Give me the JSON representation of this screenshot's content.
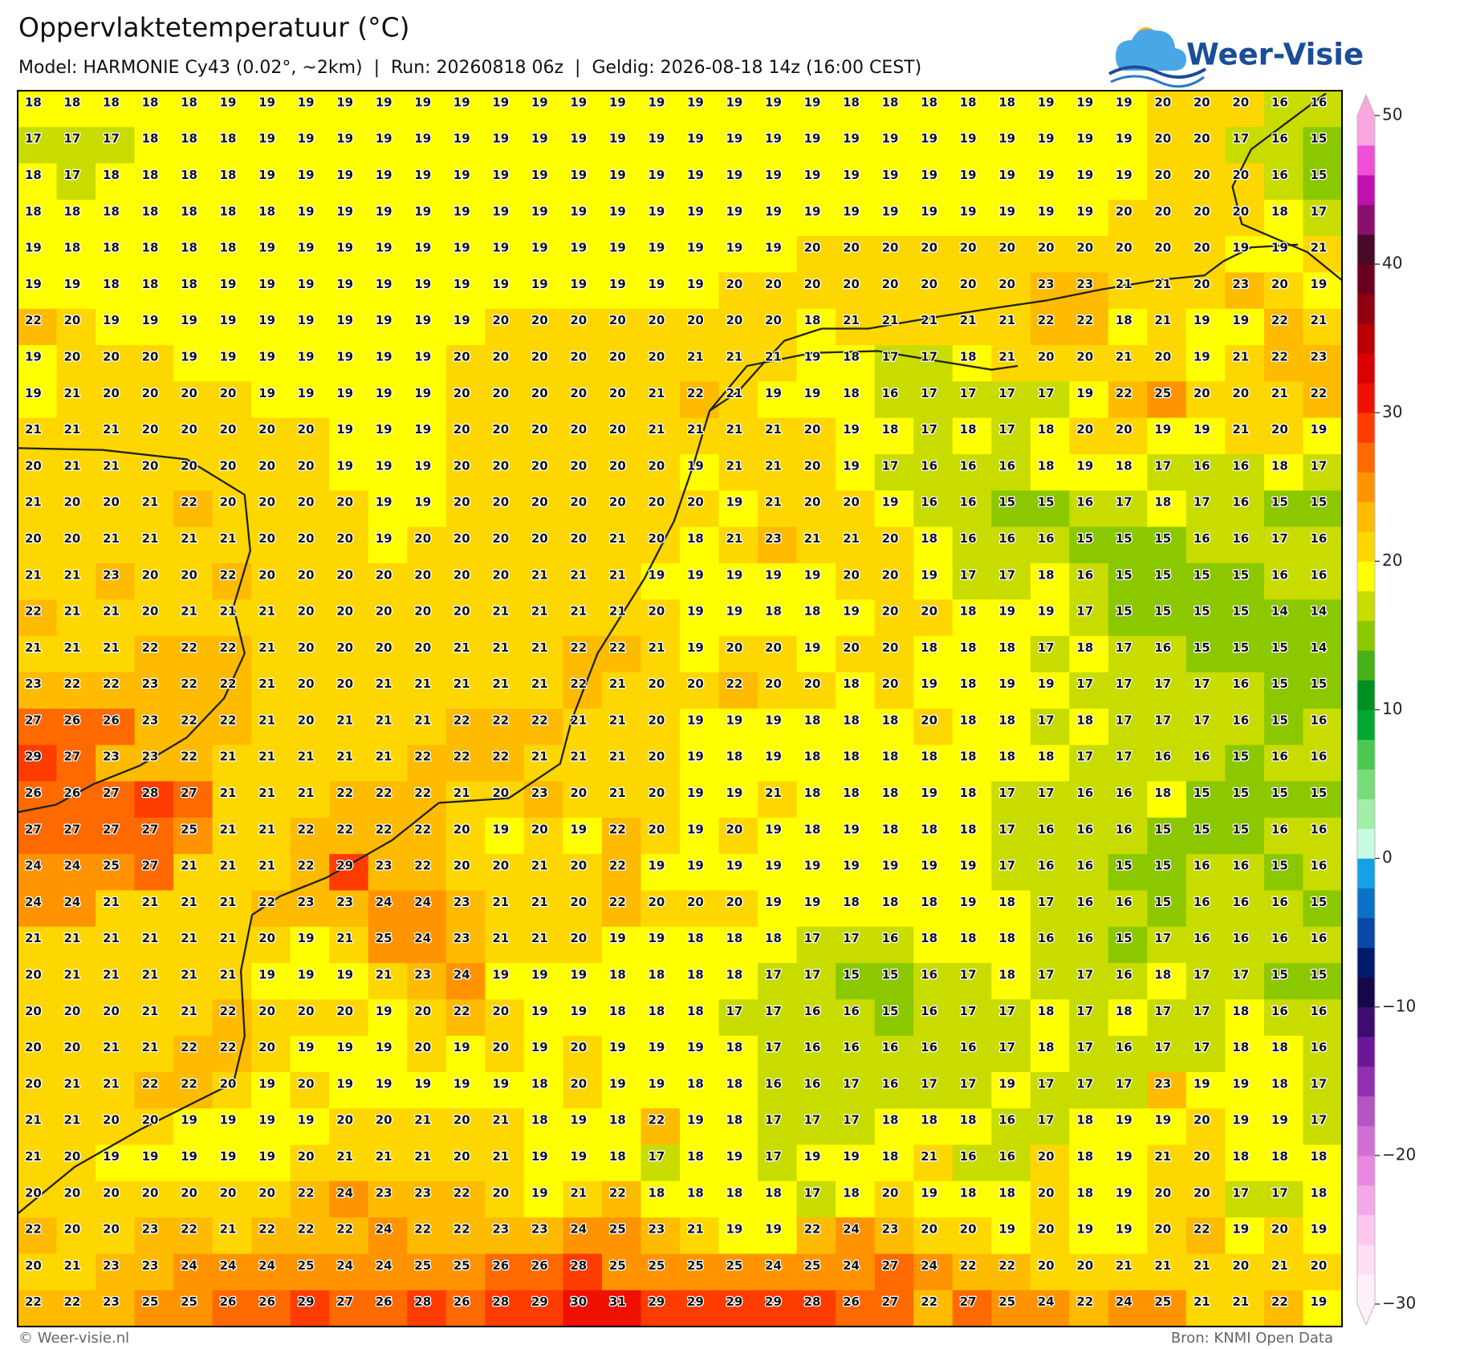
{
  "header": {
    "title": "Oppervlaktetemperatuur (°C)",
    "subtitle": "Model: HARMONIE Cy43 (0.02°, ~2km)  |  Run: 20260818 06z  |  Geldig: 2026-08-18 14z (16:00 CEST)"
  },
  "logo": {
    "text": "Weer-Visie"
  },
  "map": {
    "grid": [
      [
        18,
        18,
        18,
        18,
        18,
        19,
        19,
        19,
        19,
        19,
        19,
        19,
        19,
        19,
        19,
        19,
        19,
        19,
        19,
        19,
        19,
        18,
        18,
        18,
        18,
        18,
        19,
        19,
        19,
        20,
        20,
        20,
        16,
        16
      ],
      [
        17,
        17,
        17,
        18,
        18,
        18,
        19,
        19,
        19,
        19,
        19,
        19,
        19,
        19,
        19,
        19,
        19,
        19,
        19,
        19,
        19,
        19,
        19,
        19,
        19,
        19,
        19,
        19,
        19,
        20,
        20,
        17,
        16,
        15
      ],
      [
        18,
        17,
        18,
        18,
        18,
        18,
        19,
        19,
        19,
        19,
        19,
        19,
        19,
        19,
        19,
        19,
        19,
        19,
        19,
        19,
        19,
        19,
        19,
        19,
        19,
        19,
        19,
        19,
        19,
        20,
        20,
        20,
        16,
        15
      ],
      [
        18,
        18,
        18,
        18,
        18,
        18,
        18,
        19,
        19,
        19,
        19,
        19,
        19,
        19,
        19,
        19,
        19,
        19,
        19,
        19,
        19,
        19,
        19,
        19,
        19,
        19,
        19,
        19,
        20,
        20,
        20,
        20,
        18,
        17
      ],
      [
        19,
        18,
        18,
        18,
        18,
        18,
        19,
        19,
        19,
        19,
        19,
        19,
        19,
        19,
        19,
        19,
        19,
        19,
        19,
        19,
        20,
        20,
        20,
        20,
        20,
        20,
        20,
        20,
        20,
        20,
        20,
        19,
        19,
        21
      ],
      [
        19,
        19,
        18,
        18,
        18,
        19,
        19,
        19,
        19,
        19,
        19,
        19,
        19,
        19,
        19,
        19,
        19,
        19,
        20,
        20,
        20,
        20,
        20,
        20,
        20,
        20,
        23,
        23,
        21,
        21,
        20,
        23,
        20,
        19
      ],
      [
        22,
        20,
        19,
        19,
        19,
        19,
        19,
        19,
        19,
        19,
        19,
        19,
        20,
        20,
        20,
        20,
        20,
        20,
        20,
        20,
        18,
        21,
        21,
        21,
        21,
        21,
        22,
        22,
        18,
        21,
        19,
        19,
        22,
        21
      ],
      [
        19,
        20,
        20,
        20,
        19,
        19,
        19,
        19,
        19,
        19,
        19,
        20,
        20,
        20,
        20,
        20,
        20,
        21,
        21,
        21,
        19,
        18,
        17,
        17,
        18,
        21,
        20,
        20,
        21,
        20,
        19,
        21,
        22,
        23
      ],
      [
        19,
        21,
        20,
        20,
        20,
        20,
        19,
        19,
        19,
        19,
        19,
        20,
        20,
        20,
        20,
        20,
        21,
        22,
        21,
        19,
        19,
        18,
        16,
        17,
        17,
        17,
        17,
        19,
        22,
        25,
        20,
        20,
        21,
        22
      ],
      [
        21,
        21,
        21,
        20,
        20,
        20,
        20,
        20,
        19,
        19,
        19,
        20,
        20,
        20,
        20,
        20,
        21,
        21,
        21,
        21,
        20,
        19,
        18,
        17,
        18,
        17,
        18,
        20,
        20,
        19,
        19,
        21,
        20,
        19
      ],
      [
        20,
        21,
        21,
        20,
        20,
        20,
        20,
        20,
        19,
        19,
        19,
        20,
        20,
        20,
        20,
        20,
        20,
        19,
        21,
        21,
        20,
        19,
        17,
        16,
        16,
        16,
        18,
        19,
        18,
        17,
        16,
        16,
        18,
        17
      ],
      [
        21,
        20,
        20,
        21,
        22,
        20,
        20,
        20,
        20,
        19,
        19,
        20,
        20,
        20,
        20,
        20,
        20,
        20,
        19,
        21,
        20,
        20,
        19,
        16,
        16,
        15,
        15,
        16,
        17,
        18,
        17,
        16,
        15,
        15
      ],
      [
        20,
        20,
        21,
        21,
        21,
        21,
        20,
        20,
        20,
        19,
        20,
        20,
        20,
        20,
        20,
        21,
        20,
        18,
        21,
        23,
        21,
        21,
        20,
        18,
        16,
        16,
        16,
        15,
        15,
        15,
        16,
        16,
        17,
        16
      ],
      [
        21,
        21,
        23,
        20,
        20,
        22,
        20,
        20,
        20,
        20,
        20,
        20,
        20,
        21,
        21,
        21,
        19,
        19,
        19,
        19,
        19,
        20,
        20,
        19,
        17,
        17,
        18,
        16,
        15,
        15,
        15,
        15,
        16,
        16
      ],
      [
        22,
        21,
        21,
        20,
        21,
        21,
        21,
        20,
        20,
        20,
        20,
        20,
        21,
        21,
        21,
        21,
        20,
        19,
        19,
        18,
        18,
        19,
        20,
        20,
        18,
        19,
        19,
        17,
        15,
        15,
        15,
        15,
        14,
        14
      ],
      [
        21,
        21,
        21,
        22,
        22,
        22,
        21,
        20,
        20,
        20,
        20,
        21,
        21,
        21,
        22,
        22,
        21,
        19,
        20,
        20,
        19,
        20,
        20,
        18,
        18,
        18,
        17,
        18,
        17,
        16,
        15,
        15,
        15,
        14
      ],
      [
        23,
        22,
        22,
        23,
        22,
        22,
        21,
        20,
        20,
        21,
        21,
        21,
        21,
        21,
        22,
        21,
        20,
        20,
        22,
        20,
        20,
        18,
        20,
        19,
        18,
        19,
        19,
        17,
        17,
        17,
        17,
        16,
        15,
        15
      ],
      [
        27,
        26,
        26,
        23,
        22,
        22,
        21,
        20,
        21,
        21,
        21,
        22,
        22,
        22,
        21,
        21,
        20,
        19,
        19,
        19,
        18,
        18,
        18,
        20,
        18,
        18,
        17,
        18,
        17,
        17,
        17,
        16,
        15,
        16
      ],
      [
        29,
        27,
        23,
        23,
        22,
        21,
        21,
        21,
        21,
        21,
        22,
        22,
        22,
        21,
        21,
        21,
        20,
        19,
        18,
        19,
        18,
        18,
        18,
        18,
        18,
        18,
        18,
        17,
        17,
        16,
        16,
        15,
        16,
        16
      ],
      [
        26,
        26,
        27,
        28,
        27,
        21,
        21,
        21,
        22,
        22,
        22,
        21,
        20,
        23,
        20,
        21,
        20,
        19,
        19,
        21,
        18,
        18,
        18,
        19,
        18,
        17,
        17,
        16,
        16,
        18,
        15,
        15,
        15,
        15
      ],
      [
        27,
        27,
        27,
        27,
        25,
        21,
        21,
        22,
        22,
        22,
        22,
        20,
        19,
        20,
        19,
        22,
        20,
        19,
        20,
        19,
        18,
        19,
        18,
        18,
        18,
        17,
        16,
        16,
        16,
        15,
        15,
        15,
        16,
        16
      ],
      [
        24,
        24,
        25,
        27,
        21,
        21,
        21,
        22,
        29,
        23,
        22,
        20,
        20,
        21,
        20,
        22,
        19,
        19,
        19,
        19,
        19,
        19,
        19,
        19,
        19,
        17,
        16,
        16,
        15,
        15,
        16,
        16,
        15,
        16
      ],
      [
        24,
        24,
        21,
        21,
        21,
        21,
        22,
        23,
        23,
        24,
        24,
        23,
        21,
        21,
        20,
        22,
        20,
        20,
        20,
        19,
        19,
        18,
        18,
        18,
        19,
        18,
        17,
        16,
        16,
        15,
        16,
        16,
        16,
        15
      ],
      [
        21,
        21,
        21,
        21,
        21,
        21,
        20,
        19,
        21,
        25,
        24,
        23,
        21,
        21,
        20,
        19,
        19,
        18,
        18,
        18,
        17,
        17,
        16,
        18,
        18,
        18,
        16,
        16,
        15,
        17,
        16,
        16,
        16,
        16
      ],
      [
        20,
        21,
        21,
        21,
        21,
        21,
        19,
        19,
        19,
        21,
        23,
        24,
        19,
        19,
        19,
        18,
        18,
        18,
        18,
        17,
        17,
        15,
        15,
        16,
        17,
        18,
        17,
        17,
        16,
        18,
        17,
        17,
        15,
        15
      ],
      [
        20,
        20,
        20,
        21,
        21,
        22,
        20,
        20,
        20,
        19,
        20,
        22,
        20,
        19,
        19,
        18,
        18,
        18,
        17,
        17,
        16,
        16,
        15,
        16,
        17,
        17,
        18,
        17,
        18,
        17,
        17,
        18,
        16,
        16
      ],
      [
        20,
        20,
        21,
        21,
        22,
        22,
        20,
        19,
        19,
        19,
        20,
        19,
        20,
        19,
        20,
        19,
        19,
        19,
        18,
        17,
        16,
        16,
        16,
        16,
        16,
        17,
        18,
        17,
        16,
        17,
        17,
        18,
        18,
        16
      ],
      [
        20,
        21,
        21,
        22,
        22,
        20,
        19,
        20,
        19,
        19,
        19,
        19,
        19,
        18,
        20,
        19,
        19,
        18,
        18,
        16,
        16,
        17,
        16,
        17,
        17,
        19,
        17,
        17,
        17,
        23,
        19,
        19,
        18,
        17
      ],
      [
        21,
        21,
        20,
        20,
        19,
        19,
        19,
        19,
        20,
        20,
        21,
        20,
        21,
        18,
        19,
        18,
        22,
        19,
        18,
        17,
        17,
        17,
        18,
        18,
        18,
        16,
        17,
        18,
        19,
        19,
        20,
        19,
        19,
        17
      ],
      [
        21,
        20,
        19,
        19,
        19,
        19,
        19,
        20,
        21,
        21,
        21,
        20,
        21,
        19,
        19,
        18,
        17,
        18,
        19,
        17,
        19,
        19,
        18,
        21,
        16,
        16,
        20,
        18,
        19,
        21,
        20,
        18,
        18,
        18
      ],
      [
        20,
        20,
        20,
        20,
        20,
        20,
        20,
        22,
        24,
        23,
        23,
        22,
        20,
        19,
        21,
        22,
        18,
        18,
        18,
        18,
        17,
        18,
        20,
        19,
        18,
        18,
        20,
        18,
        19,
        20,
        20,
        17,
        17,
        18
      ],
      [
        22,
        20,
        20,
        23,
        22,
        21,
        22,
        22,
        22,
        24,
        22,
        22,
        23,
        23,
        24,
        25,
        23,
        21,
        19,
        19,
        22,
        24,
        23,
        20,
        20,
        19,
        20,
        19,
        19,
        20,
        22,
        19,
        20,
        19
      ],
      [
        20,
        21,
        23,
        23,
        24,
        24,
        24,
        25,
        24,
        24,
        25,
        25,
        26,
        26,
        28,
        25,
        25,
        25,
        25,
        24,
        25,
        24,
        27,
        24,
        22,
        22,
        20,
        20,
        21,
        21,
        21,
        20,
        21,
        20
      ],
      [
        22,
        22,
        23,
        25,
        25,
        26,
        26,
        29,
        27,
        26,
        28,
        26,
        28,
        29,
        30,
        31,
        29,
        29,
        29,
        29,
        28,
        26,
        27,
        22,
        27,
        25,
        24,
        22,
        24,
        25,
        21,
        21,
        22,
        19
      ]
    ]
  },
  "colorbar": {
    "range": [
      -30,
      50
    ],
    "ticks": [
      {
        "value": -30,
        "label": "−30"
      },
      {
        "value": -20,
        "label": "−20"
      },
      {
        "value": -10,
        "label": "−10"
      },
      0,
      10,
      20,
      30,
      40,
      50
    ],
    "colors": [
      "#fff0fb",
      "#fde0f6",
      "#fcc8f0",
      "#f4a8e8",
      "#e888e0",
      "#d070d4",
      "#b455c4",
      "#9030b0",
      "#6a1898",
      "#3c0c70",
      "#14084a",
      "#021a6b",
      "#0848a8",
      "#0a72c6",
      "#16a0e6",
      "#c8fae0",
      "#a0eea8",
      "#78dc78",
      "#4cc850",
      "#00a830",
      "#009020",
      "#48b018",
      "#8cc800",
      "#c8dc00",
      "#ffff00",
      "#ffd700",
      "#ffbb00",
      "#ff9400",
      "#ff6a00",
      "#ff3c00",
      "#f01000",
      "#d80000",
      "#b80000",
      "#900010",
      "#6a0020",
      "#480a28",
      "#8a1070",
      "#c010b0",
      "#f050d8",
      "#f8a8dc"
    ]
  },
  "footer": {
    "credit": "© Weer-visie.nl",
    "source": "Bron: KNMI Open Data"
  }
}
